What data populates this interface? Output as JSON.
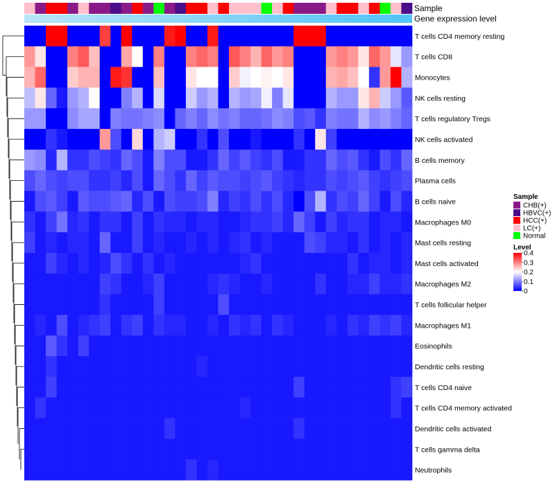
{
  "chart_data": {
    "type": "heatmap",
    "title": "",
    "annotation_labels": [
      "Sample",
      "Gene expression level"
    ],
    "rows": [
      "T cells CD4 memory resting",
      "T cells CD8",
      "Monocytes",
      "NK cells resting",
      "T cells regulatory  Tregs",
      "NK cells activated",
      "B cells memory",
      "Plasma cells",
      "B cells naive",
      "Macrophages M0",
      "Mast cells resting",
      "Mast cells activated",
      "Macrophages M2",
      "T cells follicular helper",
      "Macrophages M1",
      "Eosinophils",
      "Dendritic cells resting",
      "T cells CD4 naive",
      "T cells CD4 memory activated",
      "Dendritic cells activated",
      "T cells gamma delta",
      "Neutrophils"
    ],
    "sample_groups": [
      "LC(+)",
      "CHB(+)",
      "HCC(+)",
      "HCC(+)",
      "CHB(+)",
      "LC(+)",
      "CHB(+)",
      "CHB(+)",
      "HBVC(+)",
      "CHB(+)",
      "HCC(+)",
      "CHB(+)",
      "Normal",
      "CHB(+)",
      "HBVC(+)",
      "HCC(+)",
      "HCC(+)",
      "LC(+)",
      "HCC(+)",
      "LC(+)",
      "LC(+)",
      "LC(+)",
      "Normal",
      "LC(+)",
      "HCC(+)",
      "CHB(+)",
      "CHB(+)",
      "CHB(+)",
      "LC(+)",
      "HCC(+)",
      "HCC(+)",
      "LC(+)",
      "HCC(+)",
      "Normal",
      "LC(+)",
      "HBVC(+)"
    ],
    "values": [
      [
        0.0,
        0.0,
        0.4,
        0.4,
        0.0,
        0.0,
        0.0,
        0.35,
        0.0,
        0.4,
        0.0,
        0.0,
        0.0,
        0.38,
        0.4,
        0.0,
        0.0,
        0.38,
        0.0,
        0.0,
        0.0,
        0.0,
        0.0,
        0.0,
        0.0,
        0.4,
        0.4,
        0.4,
        0.0,
        0.0,
        0.0,
        0.0,
        0.0,
        0.0,
        0.0,
        0.0
      ],
      [
        0.28,
        0.22,
        0.0,
        0.0,
        0.3,
        0.33,
        0.25,
        0.0,
        0.0,
        0.27,
        0.2,
        0.0,
        0.3,
        0.0,
        0.0,
        0.3,
        0.32,
        0.3,
        0.0,
        0.33,
        0.3,
        0.26,
        0.32,
        0.28,
        0.3,
        0.0,
        0.0,
        0.0,
        0.28,
        0.3,
        0.28,
        0.22,
        0.32,
        0.28,
        0.18,
        0.12
      ],
      [
        0.26,
        0.32,
        0.0,
        0.0,
        0.24,
        0.26,
        0.26,
        0.0,
        0.38,
        0.36,
        0.0,
        0.0,
        0.25,
        0.0,
        0.0,
        0.22,
        0.2,
        0.2,
        0.0,
        0.24,
        0.19,
        0.2,
        0.21,
        0.2,
        0.22,
        0.0,
        0.0,
        0.0,
        0.26,
        0.27,
        0.25,
        0.2,
        0.04,
        0.28,
        0.4,
        0.14
      ],
      [
        0.15,
        0.22,
        0.08,
        0.02,
        0.12,
        0.14,
        0.2,
        0.0,
        0.0,
        0.1,
        0.14,
        0.0,
        0.17,
        0.0,
        0.0,
        0.16,
        0.12,
        0.14,
        0.0,
        0.14,
        0.12,
        0.13,
        0.19,
        0.1,
        0.18,
        0.0,
        0.0,
        0.0,
        0.14,
        0.12,
        0.12,
        0.22,
        0.26,
        0.16,
        0.12,
        0.07
      ],
      [
        0.12,
        0.12,
        0.0,
        0.0,
        0.11,
        0.13,
        0.13,
        0.0,
        0.1,
        0.09,
        0.09,
        0.1,
        0.11,
        0.0,
        0.08,
        0.1,
        0.08,
        0.11,
        0.09,
        0.1,
        0.08,
        0.08,
        0.09,
        0.11,
        0.1,
        0.06,
        0.07,
        0.04,
        0.1,
        0.09,
        0.09,
        0.14,
        0.11,
        0.12,
        0.1,
        0.08
      ],
      [
        0.0,
        0.0,
        0.04,
        0.02,
        0.0,
        0.0,
        0.0,
        0.28,
        0.06,
        0.0,
        0.23,
        0.0,
        0.14,
        0.16,
        0.0,
        0.0,
        0.04,
        0.0,
        0.06,
        0.0,
        0.0,
        0.02,
        0.0,
        0.0,
        0.0,
        0.04,
        0.0,
        0.22,
        0.05,
        0.0,
        0.0,
        0.0,
        0.0,
        0.0,
        0.0,
        0.0
      ],
      [
        0.12,
        0.11,
        0.03,
        0.14,
        0.04,
        0.04,
        0.06,
        0.05,
        0.04,
        0.08,
        0.06,
        0.02,
        0.1,
        0.06,
        0.06,
        0.02,
        0.02,
        0.04,
        0.08,
        0.05,
        0.07,
        0.05,
        0.04,
        0.06,
        0.02,
        0.02,
        0.04,
        0.04,
        0.08,
        0.06,
        0.07,
        0.04,
        0.02,
        0.06,
        0.04,
        0.08
      ],
      [
        0.06,
        0.08,
        0.06,
        0.05,
        0.06,
        0.06,
        0.04,
        0.04,
        0.05,
        0.03,
        0.06,
        0.02,
        0.08,
        0.06,
        0.04,
        0.08,
        0.05,
        0.07,
        0.06,
        0.06,
        0.05,
        0.06,
        0.07,
        0.05,
        0.04,
        0.03,
        0.04,
        0.04,
        0.06,
        0.05,
        0.06,
        0.07,
        0.05,
        0.04,
        0.05,
        0.06
      ],
      [
        0.02,
        0.06,
        0.07,
        0.05,
        0.02,
        0.07,
        0.06,
        0.06,
        0.07,
        0.08,
        0.03,
        0.06,
        0.02,
        0.06,
        0.05,
        0.05,
        0.06,
        0.1,
        0.03,
        0.05,
        0.04,
        0.06,
        0.04,
        0.06,
        0.03,
        0.0,
        0.06,
        0.14,
        0.04,
        0.06,
        0.05,
        0.08,
        0.05,
        0.02,
        0.06,
        0.03
      ],
      [
        0.04,
        0.02,
        0.05,
        0.09,
        0.03,
        0.04,
        0.02,
        0.04,
        0.04,
        0.02,
        0.05,
        0.02,
        0.04,
        0.03,
        0.03,
        0.02,
        0.03,
        0.03,
        0.02,
        0.02,
        0.03,
        0.04,
        0.04,
        0.05,
        0.03,
        0.08,
        0.05,
        0.02,
        0.05,
        0.03,
        0.04,
        0.04,
        0.02,
        0.03,
        0.03,
        0.02
      ],
      [
        0.05,
        0.02,
        0.03,
        0.02,
        0.03,
        0.03,
        0.02,
        0.08,
        0.02,
        0.02,
        0.05,
        0.02,
        0.03,
        0.02,
        0.02,
        0.03,
        0.02,
        0.03,
        0.02,
        0.03,
        0.04,
        0.02,
        0.03,
        0.02,
        0.02,
        0.02,
        0.06,
        0.05,
        0.03,
        0.03,
        0.02,
        0.04,
        0.02,
        0.03,
        0.02,
        0.03
      ],
      [
        0.02,
        0.02,
        0.05,
        0.03,
        0.02,
        0.03,
        0.02,
        0.03,
        0.06,
        0.04,
        0.02,
        0.04,
        0.02,
        0.03,
        0.02,
        0.02,
        0.02,
        0.02,
        0.02,
        0.02,
        0.03,
        0.04,
        0.02,
        0.02,
        0.02,
        0.02,
        0.02,
        0.02,
        0.02,
        0.02,
        0.04,
        0.02,
        0.03,
        0.03,
        0.02,
        0.03
      ],
      [
        0.02,
        0.02,
        0.02,
        0.02,
        0.02,
        0.02,
        0.02,
        0.05,
        0.04,
        0.02,
        0.02,
        0.03,
        0.05,
        0.02,
        0.02,
        0.02,
        0.02,
        0.03,
        0.04,
        0.03,
        0.02,
        0.02,
        0.03,
        0.02,
        0.02,
        0.02,
        0.02,
        0.04,
        0.02,
        0.02,
        0.03,
        0.03,
        0.05,
        0.03,
        0.03,
        0.04
      ],
      [
        0.02,
        0.02,
        0.02,
        0.02,
        0.02,
        0.02,
        0.02,
        0.04,
        0.02,
        0.02,
        0.02,
        0.02,
        0.05,
        0.02,
        0.02,
        0.02,
        0.02,
        0.02,
        0.06,
        0.02,
        0.02,
        0.02,
        0.02,
        0.02,
        0.02,
        0.02,
        0.02,
        0.02,
        0.02,
        0.02,
        0.02,
        0.02,
        0.02,
        0.02,
        0.02,
        0.02
      ],
      [
        0.02,
        0.03,
        0.02,
        0.06,
        0.02,
        0.03,
        0.04,
        0.05,
        0.02,
        0.04,
        0.05,
        0.02,
        0.04,
        0.03,
        0.03,
        0.02,
        0.02,
        0.03,
        0.02,
        0.04,
        0.03,
        0.04,
        0.02,
        0.04,
        0.03,
        0.02,
        0.02,
        0.02,
        0.03,
        0.02,
        0.04,
        0.03,
        0.05,
        0.04,
        0.05,
        0.03
      ],
      [
        0.02,
        0.02,
        0.07,
        0.04,
        0.02,
        0.05,
        0.02,
        0.02,
        0.02,
        0.02,
        0.02,
        0.02,
        0.02,
        0.02,
        0.02,
        0.02,
        0.02,
        0.02,
        0.02,
        0.02,
        0.02,
        0.02,
        0.02,
        0.02,
        0.02,
        0.02,
        0.02,
        0.02,
        0.02,
        0.02,
        0.02,
        0.02,
        0.02,
        0.02,
        0.02,
        0.02
      ],
      [
        0.02,
        0.02,
        0.04,
        0.02,
        0.02,
        0.02,
        0.02,
        0.02,
        0.02,
        0.02,
        0.02,
        0.02,
        0.02,
        0.02,
        0.02,
        0.02,
        0.03,
        0.02,
        0.02,
        0.02,
        0.02,
        0.02,
        0.02,
        0.02,
        0.02,
        0.02,
        0.02,
        0.02,
        0.02,
        0.02,
        0.02,
        0.02,
        0.02,
        0.02,
        0.02,
        0.02
      ],
      [
        0.02,
        0.02,
        0.05,
        0.02,
        0.02,
        0.02,
        0.02,
        0.02,
        0.02,
        0.02,
        0.02,
        0.02,
        0.02,
        0.02,
        0.02,
        0.02,
        0.02,
        0.02,
        0.02,
        0.02,
        0.02,
        0.02,
        0.02,
        0.02,
        0.02,
        0.05,
        0.02,
        0.02,
        0.02,
        0.02,
        0.02,
        0.02,
        0.02,
        0.02,
        0.04,
        0.05
      ],
      [
        0.02,
        0.04,
        0.02,
        0.02,
        0.02,
        0.02,
        0.02,
        0.02,
        0.02,
        0.02,
        0.02,
        0.02,
        0.02,
        0.02,
        0.02,
        0.02,
        0.02,
        0.02,
        0.02,
        0.02,
        0.03,
        0.02,
        0.02,
        0.02,
        0.02,
        0.02,
        0.02,
        0.02,
        0.02,
        0.02,
        0.02,
        0.02,
        0.02,
        0.02,
        0.04,
        0.02
      ],
      [
        0.02,
        0.02,
        0.02,
        0.02,
        0.02,
        0.02,
        0.02,
        0.02,
        0.02,
        0.02,
        0.02,
        0.02,
        0.02,
        0.04,
        0.02,
        0.02,
        0.02,
        0.02,
        0.02,
        0.02,
        0.02,
        0.02,
        0.02,
        0.02,
        0.02,
        0.04,
        0.02,
        0.02,
        0.02,
        0.02,
        0.02,
        0.02,
        0.02,
        0.02,
        0.02,
        0.02
      ],
      [
        0.02,
        0.02,
        0.02,
        0.02,
        0.02,
        0.02,
        0.02,
        0.02,
        0.02,
        0.02,
        0.02,
        0.02,
        0.02,
        0.02,
        0.02,
        0.02,
        0.02,
        0.02,
        0.02,
        0.02,
        0.02,
        0.02,
        0.02,
        0.02,
        0.02,
        0.02,
        0.02,
        0.02,
        0.02,
        0.02,
        0.02,
        0.02,
        0.02,
        0.02,
        0.02,
        0.02
      ],
      [
        0.02,
        0.02,
        0.02,
        0.02,
        0.02,
        0.02,
        0.02,
        0.02,
        0.02,
        0.02,
        0.02,
        0.02,
        0.02,
        0.02,
        0.02,
        0.04,
        0.02,
        0.03,
        0.02,
        0.02,
        0.02,
        0.02,
        0.02,
        0.02,
        0.02,
        0.02,
        0.02,
        0.02,
        0.02,
        0.02,
        0.02,
        0.02,
        0.02,
        0.02,
        0.02,
        0.02
      ]
    ],
    "legend": {
      "sample_title": "Sample",
      "sample_entries": [
        {
          "label": "CHB(+)",
          "color": "#8B1A89"
        },
        {
          "label": "HBVC(+)",
          "color": "#4B0D8A"
        },
        {
          "label": "HCC(+)",
          "color": "#FF0000"
        },
        {
          "label": "LC(+)",
          "color": "#FFC0CB"
        },
        {
          "label": "Normal",
          "color": "#00FF00"
        }
      ],
      "level_title": "Level",
      "level_ticks": [
        "0.4",
        "0.3",
        "0.2",
        "0.1",
        "0"
      ],
      "level_tick_values": [
        0.4,
        0.3,
        0.2,
        0.1,
        0
      ]
    },
    "value_range": [
      0,
      0.4
    ],
    "colorscale": [
      "#0000FF",
      "#FFFFFF",
      "#FF0000"
    ],
    "expression_bar_colors": [
      "#B9E5F7",
      "#4FC3F7"
    ]
  }
}
